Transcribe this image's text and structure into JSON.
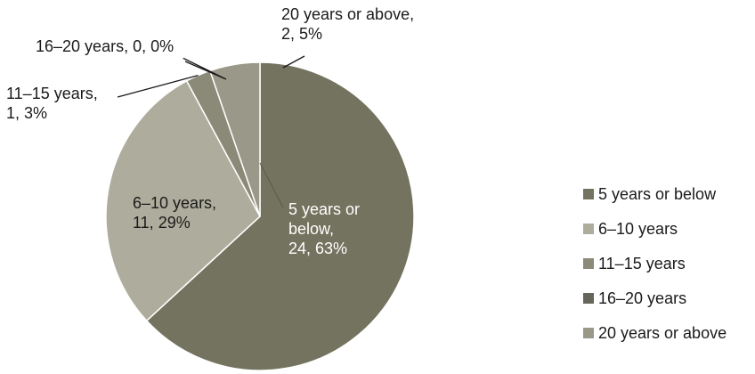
{
  "chart_data": {
    "type": "pie",
    "categories": [
      "5 years or below",
      "6–10 years",
      "11–15 years",
      "16–20 years",
      "20 years or above"
    ],
    "values": [
      24,
      11,
      1,
      0,
      2
    ],
    "percents": [
      63,
      29,
      3,
      0,
      5
    ],
    "colors": [
      "#74735f",
      "#aeac9c",
      "#8b8a78",
      "#66665a",
      "#9a9888"
    ],
    "start": "12 o'clock",
    "direction": "clockwise",
    "data_labels": [
      [
        "5 years or",
        "below,",
        "24,  63%"
      ],
      [
        "6–10 years,",
        "11, 29%"
      ],
      [
        "11–15 years,",
        "1, 3%"
      ],
      [
        "16–20 years, 0, 0%"
      ],
      [
        "20 years or above,",
        "2, 5%"
      ]
    ],
    "legend": {
      "position": "right",
      "entries": [
        "5 years or below",
        "6–10 years",
        "11–15 years",
        "16–20 years",
        "20 years or above"
      ]
    }
  }
}
